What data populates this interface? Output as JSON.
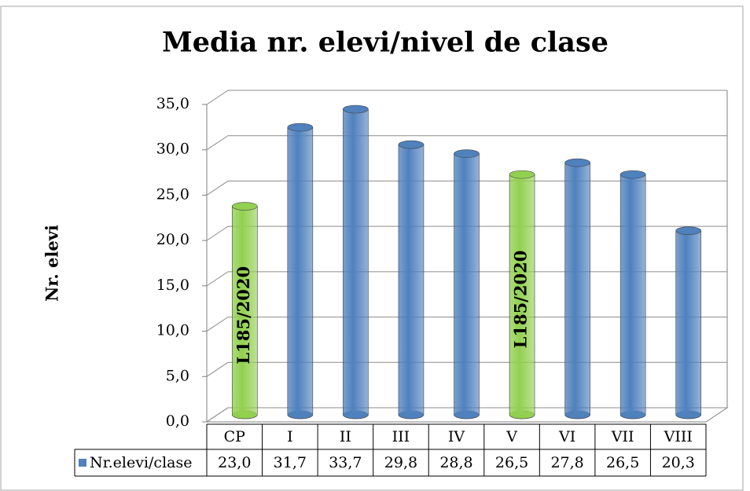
{
  "chart_data": {
    "type": "bar3d",
    "title": "Media nr. elevi/nivel de clase",
    "y_label": "Nr. elevi",
    "categories": [
      "CP",
      "I",
      "II",
      "III",
      "IV",
      "V",
      "VI",
      "VII",
      "VIII"
    ],
    "series": [
      {
        "name": "Nr.elevi/clase",
        "color": "#4f81bd",
        "values": [
          23.0,
          31.7,
          33.7,
          29.8,
          28.8,
          26.5,
          27.8,
          26.5,
          20.3
        ],
        "value_labels": [
          "23,0",
          "31,7",
          "33,7",
          "29,8",
          "28,8",
          "26,5",
          "27,8",
          "26,5",
          "20,3"
        ],
        "colors": [
          "#92d050",
          "#4f81bd",
          "#4f81bd",
          "#4f81bd",
          "#4f81bd",
          "#92d050",
          "#4f81bd",
          "#4f81bd",
          "#4f81bd"
        ],
        "point_labels": [
          "L185/2020",
          null,
          null,
          null,
          null,
          "L185/2020",
          null,
          null,
          null
        ]
      }
    ],
    "ylim": [
      0,
      35
    ],
    "yticks": [
      {
        "value": 0,
        "label": "0,0"
      },
      {
        "value": 5,
        "label": "5,0"
      },
      {
        "value": 10,
        "label": "10,0"
      },
      {
        "value": 15,
        "label": "15,0"
      },
      {
        "value": 20,
        "label": "20,0"
      },
      {
        "value": 25,
        "label": "25,0"
      },
      {
        "value": 30,
        "label": "30,0"
      },
      {
        "value": 35,
        "label": "35,0"
      }
    ],
    "grid": true,
    "data_table": true
  }
}
